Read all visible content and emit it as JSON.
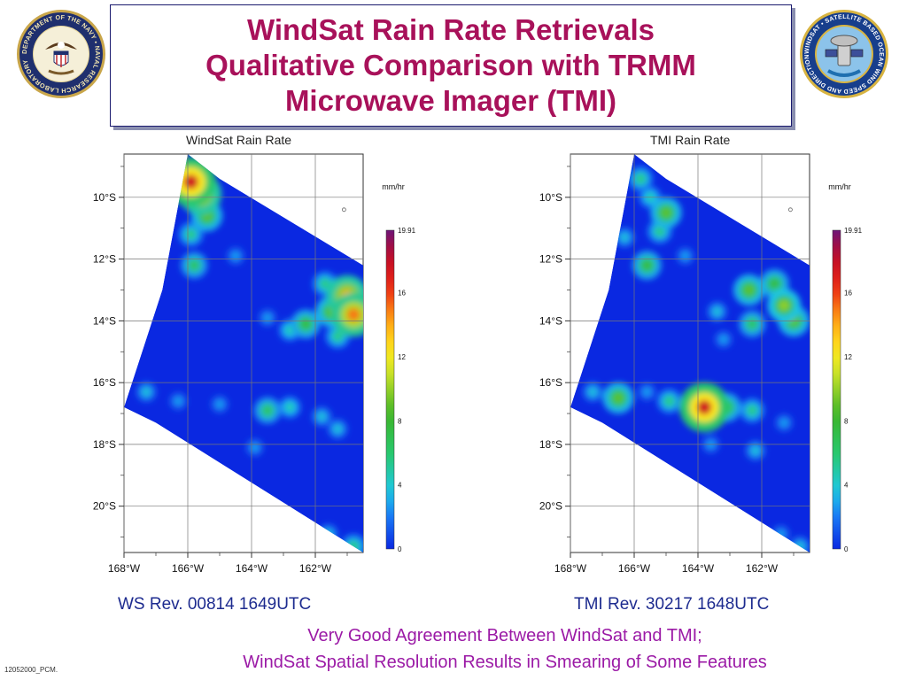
{
  "header": {
    "title_lines": [
      "WindSat Rain Rate Retrievals",
      "Qualitative Comparison with TRMM",
      "Microwave Imager (TMI)"
    ],
    "navy_seal_icon": "navy-research-laboratory-seal",
    "navy_seal_text": "DEPARTMENT OF THE NAVY • NAVAL RESEARCH LABORATORY",
    "windsat_seal_icon": "windsat-mission-seal",
    "windsat_seal_text": "WINDSAT • SATELLITE BASED OCEAN WIND SPEED AND DIRECTION"
  },
  "captions": {
    "left_rev": "WS Rev. 00814 1649UTC",
    "right_rev": "TMI Rev. 30217 1648UTC"
  },
  "conclusion": {
    "line1": "Very Good Agreement Between WindSat and TMI;",
    "line2": "WindSat Spatial Resolution Results in Smearing of Some Features"
  },
  "footer": "12052000_PCM.",
  "colors": {
    "title": "#a8115a",
    "caption": "#1d2b8f",
    "conclusion": "#9b1aa6",
    "background_rain": "#0a2be0"
  },
  "chart_data": [
    {
      "type": "heatmap",
      "title": "WindSat Rain Rate",
      "units": "mm/hr",
      "xlim": [
        -168,
        -160.5
      ],
      "ylim": [
        -21.5,
        -8.6
      ],
      "x_ticks": [
        "168°W",
        "166°W",
        "164°W",
        "162°W"
      ],
      "y_ticks": [
        "10°S",
        "12°S",
        "14°S",
        "16°S",
        "18°S",
        "20°S"
      ],
      "colorbar_ticks": [
        "19.91",
        "16",
        "12",
        "8",
        "4",
        "0"
      ],
      "colorbar_range": [
        0,
        19.91
      ],
      "swath": [
        [
          -166,
          -8.6
        ],
        [
          -165,
          -9.4
        ],
        [
          -160.5,
          -12.2
        ],
        [
          -160.5,
          -21.5
        ],
        [
          -167,
          -17.3
        ],
        [
          -168,
          -16.8
        ],
        [
          -166.8,
          -13
        ]
      ],
      "cells": [
        {
          "lon": -165.9,
          "lat": -9.5,
          "rate": 17.5
        },
        {
          "lon": -165.6,
          "lat": -9.9,
          "rate": 14
        },
        {
          "lon": -165.4,
          "lat": -10.6,
          "rate": 9
        },
        {
          "lon": -165.9,
          "lat": -11.2,
          "rate": 6
        },
        {
          "lon": -165.8,
          "lat": -12.2,
          "rate": 7
        },
        {
          "lon": -164.5,
          "lat": -11.9,
          "rate": 3
        },
        {
          "lon": -161.5,
          "lat": -13.7,
          "rate": 9
        },
        {
          "lon": -161,
          "lat": -13.2,
          "rate": 14
        },
        {
          "lon": -160.8,
          "lat": -13.8,
          "rate": 15
        },
        {
          "lon": -162.3,
          "lat": -14.1,
          "rate": 8
        },
        {
          "lon": -162.8,
          "lat": -14.3,
          "rate": 5
        },
        {
          "lon": -161.7,
          "lat": -12.8,
          "rate": 6
        },
        {
          "lon": -161.3,
          "lat": -14.5,
          "rate": 6
        },
        {
          "lon": -163.5,
          "lat": -13.9,
          "rate": 3
        },
        {
          "lon": -167.3,
          "lat": -16.3,
          "rate": 4
        },
        {
          "lon": -166.3,
          "lat": -16.6,
          "rate": 3
        },
        {
          "lon": -165,
          "lat": -16.7,
          "rate": 3
        },
        {
          "lon": -163.5,
          "lat": -16.9,
          "rate": 7
        },
        {
          "lon": -162.8,
          "lat": -16.8,
          "rate": 5
        },
        {
          "lon": -161.8,
          "lat": -17.1,
          "rate": 4
        },
        {
          "lon": -161.3,
          "lat": -17.5,
          "rate": 4
        },
        {
          "lon": -163.9,
          "lat": -18.1,
          "rate": 3
        },
        {
          "lon": -161.6,
          "lat": -20.9,
          "rate": 4
        },
        {
          "lon": -160.8,
          "lat": -21.3,
          "rate": 6
        }
      ]
    },
    {
      "type": "heatmap",
      "title": "TMI Rain Rate",
      "units": "mm/hr",
      "xlim": [
        -168,
        -160.5
      ],
      "ylim": [
        -21.5,
        -8.6
      ],
      "x_ticks": [
        "168°W",
        "166°W",
        "164°W",
        "162°W"
      ],
      "y_ticks": [
        "10°S",
        "12°S",
        "14°S",
        "16°S",
        "18°S",
        "20°S"
      ],
      "colorbar_ticks": [
        "19.91",
        "16",
        "12",
        "8",
        "4",
        "0"
      ],
      "colorbar_range": [
        0,
        19.91
      ],
      "swath": [
        [
          -166,
          -8.6
        ],
        [
          -165,
          -9.4
        ],
        [
          -160.5,
          -12.2
        ],
        [
          -160.5,
          -21.5
        ],
        [
          -167,
          -17.3
        ],
        [
          -168,
          -16.8
        ],
        [
          -166.8,
          -13
        ]
      ],
      "cells": [
        {
          "lon": -165.8,
          "lat": -9.4,
          "rate": 6
        },
        {
          "lon": -165.5,
          "lat": -10.0,
          "rate": 5
        },
        {
          "lon": -165.0,
          "lat": -10.5,
          "rate": 9
        },
        {
          "lon": -165.2,
          "lat": -11.1,
          "rate": 6
        },
        {
          "lon": -166.3,
          "lat": -11.3,
          "rate": 4
        },
        {
          "lon": -165.6,
          "lat": -12.2,
          "rate": 8
        },
        {
          "lon": -164.4,
          "lat": -11.9,
          "rate": 3
        },
        {
          "lon": -162.4,
          "lat": -13.0,
          "rate": 9
        },
        {
          "lon": -161.6,
          "lat": -12.8,
          "rate": 8
        },
        {
          "lon": -161.3,
          "lat": -13.5,
          "rate": 10
        },
        {
          "lon": -161.0,
          "lat": -14.0,
          "rate": 9
        },
        {
          "lon": -162.3,
          "lat": -14.1,
          "rate": 7
        },
        {
          "lon": -163.4,
          "lat": -13.7,
          "rate": 4
        },
        {
          "lon": -163.2,
          "lat": -14.6,
          "rate": 3
        },
        {
          "lon": -167.3,
          "lat": -16.3,
          "rate": 4
        },
        {
          "lon": -166.5,
          "lat": -16.5,
          "rate": 9
        },
        {
          "lon": -165.6,
          "lat": -16.3,
          "rate": 3
        },
        {
          "lon": -164.9,
          "lat": -16.6,
          "rate": 6
        },
        {
          "lon": -163.8,
          "lat": -16.8,
          "rate": 17.5
        },
        {
          "lon": -163.1,
          "lat": -16.8,
          "rate": 8
        },
        {
          "lon": -162.3,
          "lat": -16.9,
          "rate": 6
        },
        {
          "lon": -161.3,
          "lat": -17.3,
          "rate": 3
        },
        {
          "lon": -163.6,
          "lat": -18.0,
          "rate": 3
        },
        {
          "lon": -162.2,
          "lat": -18.2,
          "rate": 4
        },
        {
          "lon": -161.4,
          "lat": -20.9,
          "rate": 3
        },
        {
          "lon": -160.8,
          "lat": -21.3,
          "rate": 4
        }
      ]
    }
  ]
}
